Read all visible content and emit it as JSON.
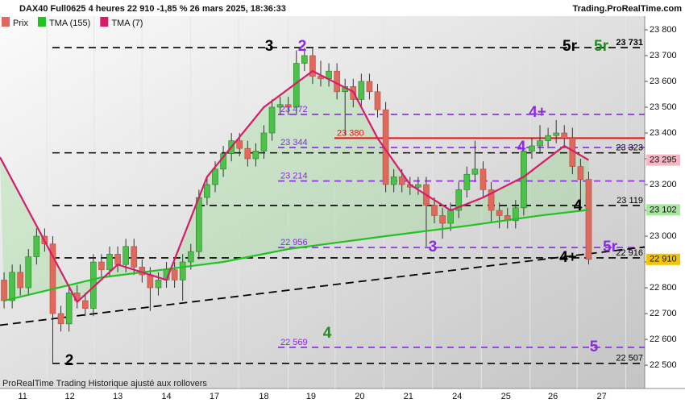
{
  "chart_data": {
    "type": "candlestick",
    "title": "DAX40 Full0625 4 heures 22 910 -1,85 % 26 mars 2025, 18:36:33",
    "source": "Trading.ProRealTime.com",
    "footer": "ProRealTime Trading  Historique ajusté aux rollovers",
    "ylim": [
      22447,
      23853
    ],
    "xlim": [
      -0.5,
      78.9
    ],
    "yticks": [
      {
        "value": 23800,
        "label": "23 800"
      },
      {
        "value": 23700,
        "label": "23 700"
      },
      {
        "value": 23600,
        "label": "23 600"
      },
      {
        "value": 23500,
        "label": "23 500"
      },
      {
        "value": 23400,
        "label": "23 400"
      },
      {
        "value": 23300,
        "label": "23 300"
      },
      {
        "value": 23200,
        "label": "23 200"
      },
      {
        "value": 23100,
        "label": "23 100"
      },
      {
        "value": 23000,
        "label": "23 000"
      },
      {
        "value": 22900,
        "label": "22 900"
      },
      {
        "value": 22800,
        "label": "22 800"
      },
      {
        "value": 22700,
        "label": "22 700"
      },
      {
        "value": 22600,
        "label": "22 600"
      },
      {
        "value": 22500,
        "label": "22 500"
      }
    ],
    "xticks": [
      {
        "value": 2.3,
        "label": "11"
      },
      {
        "value": 8.1,
        "label": "12"
      },
      {
        "value": 14,
        "label": "13"
      },
      {
        "value": 20,
        "label": "14"
      },
      {
        "value": 25.9,
        "label": "17"
      },
      {
        "value": 32,
        "label": "18"
      },
      {
        "value": 37.8,
        "label": "19"
      },
      {
        "value": 43.8,
        "label": "20"
      },
      {
        "value": 49.8,
        "label": "21"
      },
      {
        "value": 55.8,
        "label": "24"
      },
      {
        "value": 61.8,
        "label": "25"
      },
      {
        "value": 67.6,
        "label": "26"
      },
      {
        "value": 73.6,
        "label": "27"
      }
    ],
    "candles": {
      "name": "Prix",
      "up_color": "#4cc24a",
      "down_color": "#e0695c",
      "open": [
        22830,
        22750,
        22860,
        22800,
        22920,
        23000,
        22970,
        22700,
        22660,
        22780,
        22750,
        22720,
        22900,
        22870,
        22930,
        22890,
        22960,
        22880,
        22850,
        22800,
        22830,
        22870,
        22830,
        22900,
        22940,
        23150,
        23200,
        23260,
        23320,
        23370,
        23340,
        23300,
        23330,
        23400,
        23500,
        23510,
        23500,
        23670,
        23700,
        23620,
        23610,
        23640,
        23560,
        23580,
        23530,
        23600,
        23560,
        23490,
        23200,
        23230,
        23200,
        23190,
        23200,
        23120,
        23080,
        23050,
        23100,
        23180,
        23240,
        23260,
        23180,
        23100,
        23080,
        23060,
        23110,
        23330,
        23350,
        23370,
        23390,
        23400,
        23380,
        23270,
        23220
      ],
      "high": [
        22860,
        22890,
        22890,
        22950,
        23030,
        23030,
        23000,
        22730,
        22810,
        22810,
        22780,
        22930,
        22930,
        22960,
        22960,
        22990,
        22990,
        22910,
        22880,
        22860,
        22900,
        22900,
        22930,
        22970,
        23180,
        23230,
        23290,
        23350,
        23400,
        23400,
        23370,
        23360,
        23430,
        23530,
        23540,
        23540,
        23720,
        23730,
        23730,
        23680,
        23670,
        23670,
        23610,
        23610,
        23630,
        23630,
        23590,
        23520,
        23260,
        23260,
        23230,
        23230,
        23230,
        23150,
        23110,
        23130,
        23210,
        23270,
        23370,
        23290,
        23210,
        23130,
        23110,
        23140,
        23360,
        23380,
        23430,
        23420,
        23450,
        23430,
        23420,
        23300,
        23250
      ],
      "low": [
        22720,
        22720,
        22770,
        22770,
        22890,
        22940,
        22510,
        22630,
        22630,
        22720,
        22690,
        22690,
        22840,
        22840,
        22860,
        22860,
        22850,
        22820,
        22710,
        22770,
        22800,
        22800,
        22750,
        22870,
        22910,
        23120,
        23170,
        23230,
        23290,
        23310,
        23270,
        23270,
        23300,
        23370,
        23470,
        23470,
        23470,
        23640,
        23590,
        23580,
        23580,
        23530,
        23390,
        23500,
        23500,
        23530,
        23460,
        23170,
        23170,
        23170,
        23160,
        23160,
        22960,
        23050,
        22990,
        23020,
        23070,
        23150,
        23210,
        23150,
        23050,
        23030,
        23030,
        23030,
        23080,
        23300,
        23320,
        23340,
        23360,
        23350,
        23240,
        23100,
        22890
      ],
      "close": [
        22750,
        22860,
        22800,
        22920,
        23000,
        22970,
        22700,
        22660,
        22780,
        22750,
        22720,
        22900,
        22870,
        22930,
        22890,
        22960,
        22880,
        22850,
        22800,
        22830,
        22870,
        22830,
        22900,
        22940,
        23150,
        23200,
        23260,
        23320,
        23370,
        23340,
        23300,
        23330,
        23400,
        23500,
        23510,
        23500,
        23670,
        23700,
        23620,
        23610,
        23640,
        23560,
        23580,
        23530,
        23600,
        23560,
        23490,
        23200,
        23230,
        23200,
        23190,
        23200,
        23120,
        23080,
        23050,
        23100,
        23180,
        23240,
        23260,
        23180,
        23100,
        23080,
        23060,
        23110,
        23330,
        23350,
        23370,
        23390,
        23400,
        23380,
        23270,
        23220,
        22910
      ]
    },
    "series": [
      {
        "name": "TMA (155)",
        "color": "#22c222",
        "x": [
          0,
          12,
          27,
          35,
          47,
          57,
          66,
          72
        ],
        "values": [
          22750,
          22840,
          22900,
          22950,
          23000,
          23040,
          23080,
          23102
        ]
      },
      {
        "name": "TMA (7)",
        "color": "#d81b6a",
        "x": [
          -0.5,
          9,
          14,
          20,
          25,
          32,
          38,
          43,
          46,
          50,
          55,
          59,
          64,
          69,
          72
        ],
        "values": [
          23306,
          22745,
          22890,
          22830,
          23230,
          23500,
          23640,
          23560,
          23380,
          23200,
          23100,
          23150,
          23230,
          23350,
          23295
        ]
      }
    ],
    "levels": [
      {
        "value": 23731,
        "label": "23 731",
        "color": "#000000"
      },
      {
        "value": 23323,
        "label": "23 323",
        "color": "#000000"
      },
      {
        "value": 23119,
        "label": "23 119",
        "color": "#000000"
      },
      {
        "value": 22916,
        "label": "22 916",
        "color": "#000000"
      },
      {
        "value": 22507,
        "label": "22 507",
        "color": "#000000"
      },
      {
        "value": 23472,
        "label": "23 472",
        "color": "#8a2be2"
      },
      {
        "value": 23344,
        "label": "23 344",
        "color": "#8a2be2"
      },
      {
        "value": 23214,
        "label": "23 214",
        "color": "#8a2be2"
      },
      {
        "value": 22956,
        "label": "22 956",
        "color": "#8a2be2"
      },
      {
        "value": 22569,
        "label": "22 569",
        "color": "#8a2be2"
      },
      {
        "value": 23380,
        "label": "23 380",
        "color": "#ee1111"
      }
    ],
    "trendline": {
      "start": 22655,
      "end": 22958,
      "color": "#000000"
    },
    "price_tags": [
      {
        "value": 23295,
        "label": "23 295",
        "color": "#f7b6c2"
      },
      {
        "value": 23102,
        "label": "23 102",
        "color": "#a8e6a2"
      },
      {
        "value": 22910,
        "label": "22 910",
        "color": "#f5c400"
      }
    ],
    "annotations": [
      {
        "text": "3",
        "color": "#000000"
      },
      {
        "text": "2",
        "color": "#8a2be2"
      },
      {
        "text": "5r",
        "color": "#000000"
      },
      {
        "text": "5r",
        "color": "#228b22"
      },
      {
        "text": "4+",
        "color": "#8a2be2"
      },
      {
        "text": "4",
        "color": "#8a2be2"
      },
      {
        "text": "4",
        "color": "#000000"
      },
      {
        "text": "3",
        "color": "#8a2be2"
      },
      {
        "text": "5r",
        "color": "#8a2be2"
      },
      {
        "text": "4+",
        "color": "#000000"
      },
      {
        "text": "2",
        "color": "#000000"
      },
      {
        "text": "4",
        "color": "#228b22"
      },
      {
        "text": "5",
        "color": "#8a2be2"
      }
    ]
  }
}
